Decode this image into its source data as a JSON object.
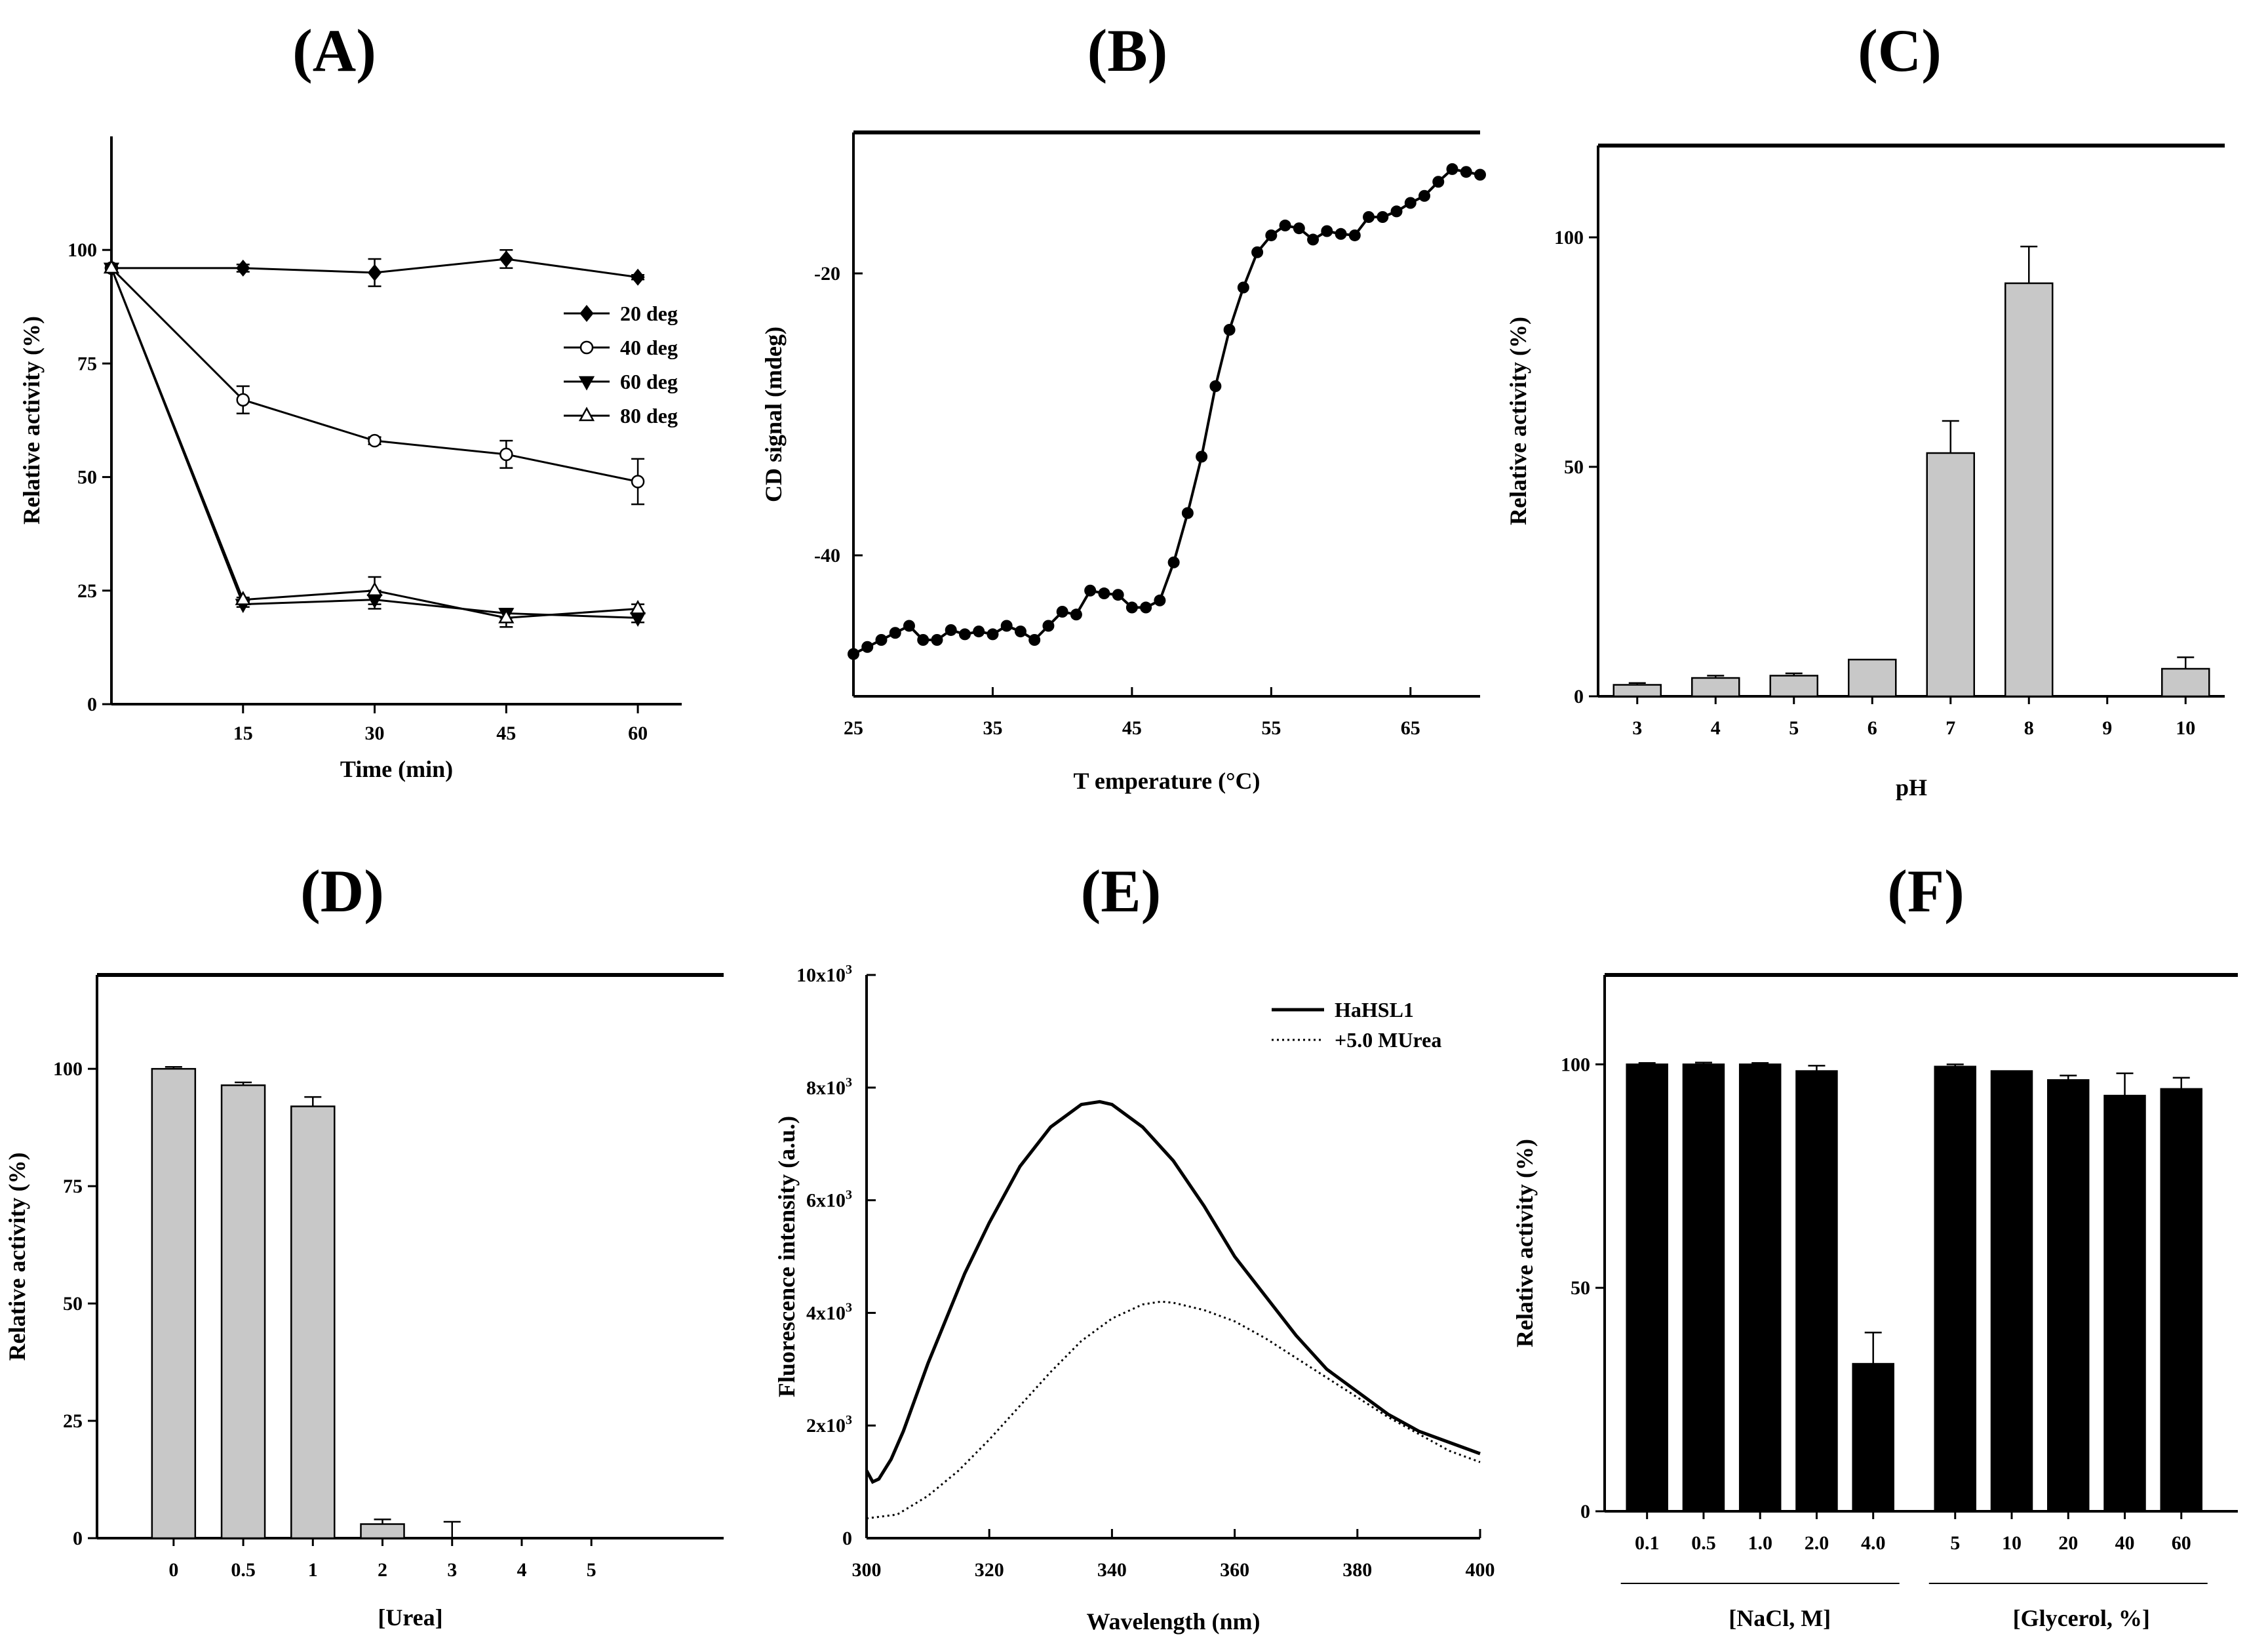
{
  "chart_data": [
    {
      "id": "A",
      "panel_label": "(A)",
      "type": "line",
      "xlabel": "Time (min)",
      "ylabel": "Relative activity (%)",
      "xlim": [
        0,
        65
      ],
      "ylim": [
        0,
        125
      ],
      "xticks": [
        15,
        30,
        45,
        60
      ],
      "yticks": [
        0,
        25,
        50,
        75,
        100
      ],
      "x": [
        0,
        15,
        30,
        45,
        60
      ],
      "series": [
        {
          "name": "20 deg",
          "marker": "diamond-filled",
          "values": [
            96,
            96,
            95,
            98,
            94
          ],
          "errors": [
            0,
            0.8,
            3,
            2,
            0.5
          ]
        },
        {
          "name": "40 deg",
          "marker": "circle-open",
          "values": [
            96,
            67,
            58,
            55,
            49
          ],
          "errors": [
            0,
            3,
            0.8,
            3,
            5
          ]
        },
        {
          "name": "60 deg",
          "marker": "triangle-down-filled",
          "values": [
            96,
            22,
            23,
            20,
            19
          ],
          "errors": [
            0,
            0.6,
            2,
            1,
            1
          ]
        },
        {
          "name": "80 deg",
          "marker": "triangle-up-open",
          "values": [
            96,
            23,
            25,
            19,
            21
          ],
          "errors": [
            0,
            0.5,
            3,
            2,
            1
          ]
        }
      ],
      "legend": "center-right"
    },
    {
      "id": "B",
      "panel_label": "(B)",
      "type": "line",
      "xlabel": "T emperature (°C)",
      "ylabel": "CD signal (mdeg)",
      "xlim": [
        25,
        70
      ],
      "ylim": [
        -50,
        -10
      ],
      "xticks": [
        25,
        35,
        45,
        55,
        65
      ],
      "yticks": [
        -20,
        -40
      ],
      "x": [
        25,
        26,
        27,
        28,
        29,
        30,
        31,
        32,
        33,
        34,
        35,
        36,
        37,
        38,
        39,
        40,
        41,
        42,
        43,
        44,
        45,
        46,
        47,
        48,
        49,
        50,
        51,
        52,
        53,
        54,
        55,
        56,
        57,
        58,
        59,
        60,
        61,
        62,
        63,
        64,
        65,
        66,
        67,
        68,
        69,
        70
      ],
      "values": [
        -47,
        -46.5,
        -46,
        -45.5,
        -45,
        -46,
        -46,
        -45.3,
        -45.6,
        -45.4,
        -45.6,
        -45,
        -45.4,
        -46,
        -45,
        -44,
        -44.2,
        -42.5,
        -42.7,
        -42.8,
        -43.7,
        -43.7,
        -43.2,
        -40.5,
        -37,
        -33,
        -28,
        -24,
        -21,
        -18.5,
        -17.3,
        -16.6,
        -16.8,
        -17.6,
        -17,
        -17.2,
        -17.3,
        -16,
        -16,
        -15.6,
        -15,
        -14.5,
        -13.5,
        -12.6,
        -12.8,
        -13
      ],
      "legend": "none"
    },
    {
      "id": "C",
      "panel_label": "(C)",
      "type": "bar",
      "xlabel": "pH",
      "ylabel": "Relative activity (%)",
      "ylim": [
        0,
        120
      ],
      "yticks": [
        0,
        50,
        100
      ],
      "categories": [
        "3",
        "4",
        "5",
        "6",
        "7",
        "8",
        "9",
        "10"
      ],
      "values": [
        2.5,
        4,
        4.5,
        8,
        53,
        90,
        0,
        6
      ],
      "errors": [
        0.4,
        0.5,
        0.5,
        0,
        7,
        8,
        0,
        2.5
      ],
      "bar_color": "#c8c8c8"
    },
    {
      "id": "D",
      "panel_label": "(D)",
      "type": "bar",
      "xlabel": "[Urea]",
      "ylabel": "Relative activity (%)",
      "ylim": [
        0,
        120
      ],
      "yticks": [
        0,
        25,
        50,
        75,
        100
      ],
      "categories": [
        "0",
        "0.5",
        "1",
        "2",
        "3",
        "4",
        "5"
      ],
      "values": [
        100,
        96.5,
        92,
        3,
        0,
        0,
        0
      ],
      "errors": [
        0.4,
        0.6,
        2,
        1,
        3.5,
        0,
        0
      ],
      "bar_color": "#c8c8c8"
    },
    {
      "id": "E",
      "panel_label": "(E)",
      "type": "line",
      "xlabel": "Wavelength (nm)",
      "ylabel": "Fluorescence intensity (a.u.)",
      "xlim": [
        300,
        400
      ],
      "ylim": [
        0,
        10000
      ],
      "xticks": [
        300,
        320,
        340,
        360,
        380,
        400
      ],
      "ytick_values": [
        0,
        2000,
        4000,
        6000,
        8000,
        10000
      ],
      "ytick_labels": [
        "0",
        "2x10³",
        "4x10³",
        "6x10³",
        "8x10³",
        "10x10³"
      ],
      "series": [
        {
          "name": "HaHSL1",
          "style": "solid",
          "x": [
            300,
            301,
            302,
            304,
            306,
            308,
            310,
            313,
            316,
            320,
            325,
            330,
            335,
            338,
            340,
            345,
            350,
            355,
            360,
            365,
            370,
            375,
            380,
            385,
            390,
            395,
            400
          ],
          "values": [
            1200,
            1000,
            1050,
            1400,
            1900,
            2500,
            3100,
            3900,
            4700,
            5600,
            6600,
            7300,
            7700,
            7750,
            7700,
            7300,
            6700,
            5900,
            5000,
            4300,
            3600,
            3000,
            2600,
            2200,
            1900,
            1700,
            1500
          ]
        },
        {
          "name": "+5.0 MUrea",
          "style": "dotted",
          "x": [
            300,
            305,
            310,
            315,
            320,
            325,
            330,
            335,
            340,
            345,
            348,
            350,
            355,
            360,
            365,
            370,
            375,
            380,
            385,
            390,
            395,
            400
          ],
          "values": [
            350,
            420,
            750,
            1200,
            1750,
            2350,
            2950,
            3500,
            3900,
            4150,
            4200,
            4180,
            4050,
            3850,
            3550,
            3200,
            2850,
            2500,
            2150,
            1850,
            1550,
            1350
          ]
        }
      ],
      "legend": "top-right"
    },
    {
      "id": "F",
      "panel_label": "(F)",
      "type": "bar",
      "xlabel": "",
      "ylabel": "Relative activity (%)",
      "ylim": [
        0,
        120
      ],
      "yticks": [
        0,
        50,
        100
      ],
      "categories": [
        "0.1",
        "0.5",
        "1.0",
        "2.0",
        "4.0",
        "5",
        "10",
        "20",
        "40",
        "60"
      ],
      "values": [
        100,
        100,
        100,
        98.5,
        33,
        99.5,
        98.5,
        96.5,
        93,
        94.5
      ],
      "errors": [
        0.3,
        0.4,
        0.3,
        1.2,
        7,
        0.5,
        0,
        1,
        5,
        2.5
      ],
      "bar_color": "#000000",
      "group_labels": [
        "[NaCl, M]",
        "[Glycerol, %]"
      ]
    }
  ]
}
